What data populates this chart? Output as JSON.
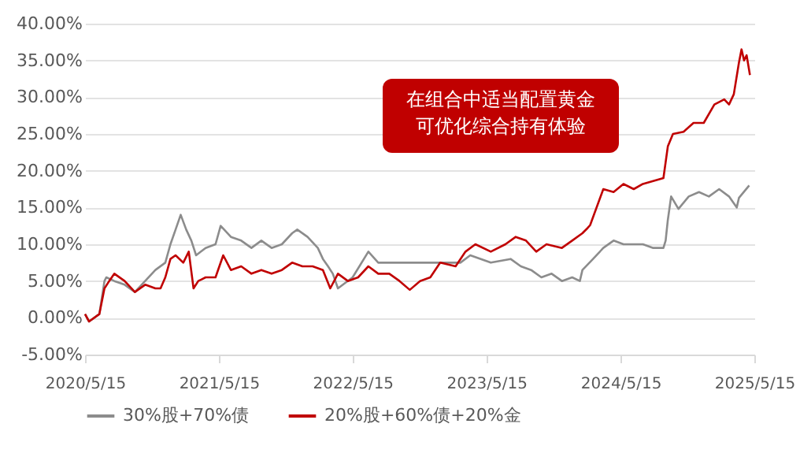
{
  "chart_data": {
    "type": "line",
    "annotations": [
      "在组合中适当配置黄金",
      "可优化综合持有体验"
    ],
    "xlim": [
      "2020-05-15",
      "2025-05-15"
    ],
    "xticks": [
      {
        "value": "2020-05-15",
        "label": "2020/5/15"
      },
      {
        "value": "2021-05-15",
        "label": "2021/5/15"
      },
      {
        "value": "2022-05-15",
        "label": "2022/5/15"
      },
      {
        "value": "2023-05-15",
        "label": "2023/5/15"
      },
      {
        "value": "2024-05-15",
        "label": "2024/5/15"
      },
      {
        "value": "2025-05-15",
        "label": "2025/5/15"
      }
    ],
    "ylim": [
      -5,
      40
    ],
    "yticks": [
      {
        "value": -5,
        "label": "-5.00%"
      },
      {
        "value": 0,
        "label": "0.00%"
      },
      {
        "value": 5,
        "label": "5.00%"
      },
      {
        "value": 10,
        "label": "10.00%"
      },
      {
        "value": 15,
        "label": "15.00%"
      },
      {
        "value": 20,
        "label": "20.00%"
      },
      {
        "value": 25,
        "label": "25.00%"
      },
      {
        "value": 30,
        "label": "30.00%"
      },
      {
        "value": 35,
        "label": "35.00%"
      },
      {
        "value": 40,
        "label": "40.00%"
      }
    ],
    "grid": "y",
    "legend": "bottom",
    "line_style": "solid",
    "marker": "none",
    "series": [
      {
        "name": "30%股+70%债",
        "color": "#8c8c8c",
        "x": [
          "2020-05-15",
          "2020-05-26",
          "2020-06-23",
          "2020-07-07",
          "2020-07-12",
          "2020-08-03",
          "2020-08-31",
          "2020-09-28",
          "2020-10-26",
          "2020-11-23",
          "2020-12-20",
          "2021-01-03",
          "2021-01-17",
          "2021-01-31",
          "2021-02-15",
          "2021-03-01",
          "2021-03-14",
          "2021-04-09",
          "2021-05-06",
          "2021-05-20",
          "2021-06-17",
          "2021-07-15",
          "2021-08-12",
          "2021-09-08",
          "2021-10-06",
          "2021-11-03",
          "2021-12-01",
          "2021-12-15",
          "2022-01-12",
          "2022-02-09",
          "2022-02-23",
          "2022-03-09",
          "2022-03-22",
          "2022-04-05",
          "2022-05-15",
          "2022-06-27",
          "2022-07-24",
          "2022-08-23",
          "2023-03-05",
          "2023-04-01",
          "2023-05-27",
          "2023-07-20",
          "2023-08-17",
          "2023-09-14",
          "2023-10-12",
          "2023-11-09",
          "2023-12-07",
          "2024-01-04",
          "2024-01-25",
          "2024-02-01",
          "2024-03-01",
          "2024-03-29",
          "2024-04-26",
          "2024-05-23",
          "2024-06-20",
          "2024-07-15",
          "2024-08-12",
          "2024-09-09",
          "2024-09-15",
          "2024-09-21",
          "2024-09-30",
          "2024-10-20",
          "2024-11-17",
          "2024-12-15",
          "2025-01-11",
          "2025-02-08",
          "2025-03-07",
          "2025-03-28",
          "2025-04-03",
          "2025-05-01"
        ],
        "values": [
          0.5,
          -0.5,
          0.5,
          5,
          5.5,
          5,
          4.5,
          3.5,
          5,
          6.5,
          7.5,
          10,
          12,
          14,
          12,
          10.5,
          8.5,
          9.5,
          10,
          12.5,
          11,
          10.5,
          9.5,
          10.5,
          9.5,
          10,
          11.5,
          12,
          11,
          9.5,
          8,
          7,
          6,
          4,
          5.5,
          9,
          7.5,
          7.5,
          7.5,
          8.5,
          7.5,
          8,
          7,
          6.5,
          5.5,
          6,
          5,
          5.5,
          5,
          6.5,
          8,
          9.5,
          10.5,
          10,
          10,
          10,
          9.5,
          9.5,
          10.5,
          13.3,
          16.5,
          14.8,
          16.5,
          17.1,
          16.5,
          17.5,
          16.5,
          15,
          16.3,
          18
        ]
      },
      {
        "name": "20%股+60%债+20%金",
        "color": "#c00000",
        "x": [
          "2020-05-15",
          "2020-05-26",
          "2020-06-23",
          "2020-07-07",
          "2020-07-20",
          "2020-08-03",
          "2020-08-31",
          "2020-09-28",
          "2020-10-26",
          "2020-11-23",
          "2020-12-07",
          "2020-12-20",
          "2021-01-03",
          "2021-01-17",
          "2021-02-07",
          "2021-02-22",
          "2021-03-07",
          "2021-03-20",
          "2021-04-09",
          "2021-05-06",
          "2021-05-27",
          "2021-06-17",
          "2021-07-15",
          "2021-08-12",
          "2021-09-08",
          "2021-10-06",
          "2021-11-03",
          "2021-12-01",
          "2021-12-29",
          "2022-01-26",
          "2022-02-23",
          "2022-03-15",
          "2022-04-05",
          "2022-05-02",
          "2022-05-30",
          "2022-06-27",
          "2022-07-24",
          "2022-08-23",
          "2022-09-20",
          "2022-10-18",
          "2022-11-15",
          "2022-12-13",
          "2023-01-09",
          "2023-02-20",
          "2023-03-19",
          "2023-04-15",
          "2023-05-27",
          "2023-07-06",
          "2023-08-03",
          "2023-08-31",
          "2023-09-28",
          "2023-10-26",
          "2023-12-07",
          "2024-01-04",
          "2024-02-01",
          "2024-02-15",
          "2024-02-22",
          "2024-03-29",
          "2024-04-26",
          "2024-05-23",
          "2024-06-20",
          "2024-07-15",
          "2024-08-12",
          "2024-09-09",
          "2024-09-21",
          "2024-10-05",
          "2024-11-03",
          "2024-11-30",
          "2024-12-28",
          "2025-01-26",
          "2025-02-22",
          "2025-03-07",
          "2025-03-20",
          "2025-04-03",
          "2025-04-10",
          "2025-04-17",
          "2025-04-24",
          "2025-05-03"
        ],
        "values": [
          0.5,
          -0.5,
          0.5,
          4,
          5,
          6,
          5,
          3.5,
          4.5,
          4,
          4,
          5.5,
          8,
          8.5,
          7.5,
          9,
          4,
          5,
          5.5,
          5.5,
          8.5,
          6.5,
          7,
          6,
          6.5,
          6,
          6.5,
          7.5,
          7,
          7,
          6.5,
          4,
          6,
          5,
          5.5,
          7,
          6,
          6,
          5,
          3.8,
          5,
          5.5,
          7.5,
          7,
          9,
          10,
          9,
          10,
          11,
          10.5,
          9,
          10,
          9.5,
          10.5,
          11.5,
          12.2,
          12.6,
          17.5,
          17.1,
          18.2,
          17.5,
          18.2,
          18.6,
          19,
          23.3,
          25,
          25.3,
          26.5,
          26.5,
          29,
          29.7,
          29,
          30.4,
          34.7,
          36.5,
          35,
          35.7,
          33
        ]
      }
    ]
  }
}
